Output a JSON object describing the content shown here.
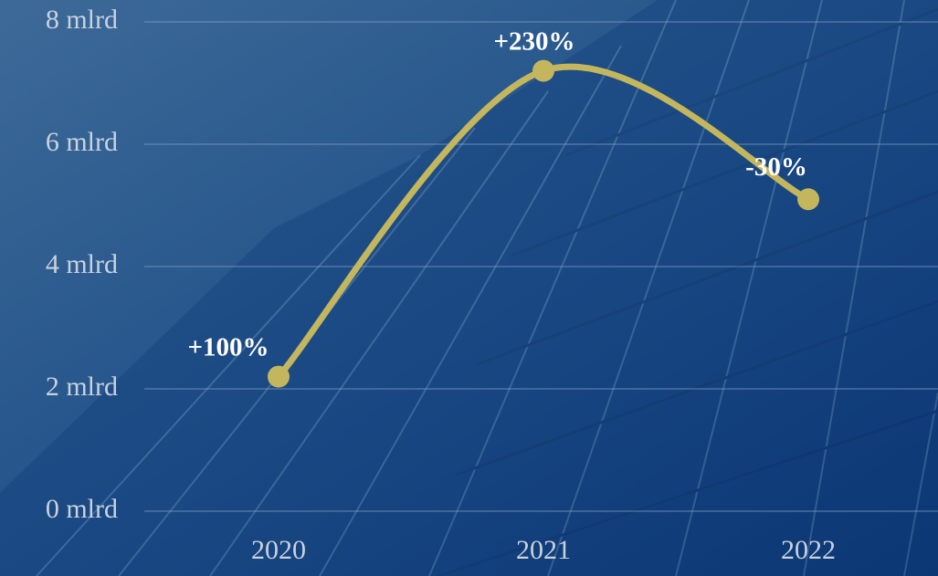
{
  "chart_data": {
    "type": "line",
    "categories": [
      "2020",
      "2021",
      "2022"
    ],
    "series": [
      {
        "color": "#c4b65c",
        "values": [
          2.2,
          7.2,
          5.1
        ]
      }
    ],
    "annotations": [
      "+100%",
      "+230%",
      "-30%"
    ],
    "ylim": [
      0,
      8
    ],
    "yticks": [
      {
        "value": 0,
        "label": "0 mlrd"
      },
      {
        "value": 2,
        "label": "2 mlrd"
      },
      {
        "value": 4,
        "label": "4 mlrd"
      },
      {
        "value": 6,
        "label": "6 mlrd"
      },
      {
        "value": 8,
        "label": "8 mlrd"
      }
    ],
    "grid": true
  }
}
